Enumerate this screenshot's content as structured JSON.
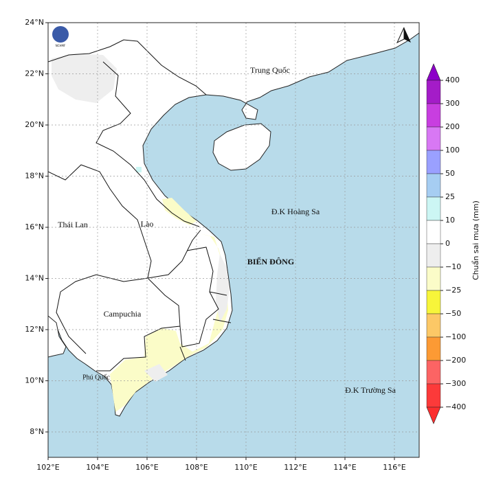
{
  "map": {
    "lat_labels": [
      "24°N",
      "22°N",
      "20°N",
      "18°N",
      "16°N",
      "14°N",
      "12°N",
      "10°N",
      "8°N"
    ],
    "lon_labels": [
      "102°E",
      "104°E",
      "106°E",
      "108°E",
      "110°E",
      "112°E",
      "114°E",
      "116°E"
    ],
    "places": [
      "Trung Quốc",
      "Thái Lan",
      "Lào",
      "Campuchia",
      "BIỂN ĐÔNG",
      "Đ.K Hoàng Sa",
      "Phú Quốc",
      "Đ.K Trường Sa"
    ],
    "logo": "NCHMF"
  },
  "colorbar": {
    "title": "Chuẩn sai mưa (mm)",
    "tick_labels": [
      "400",
      "300",
      "200",
      "100",
      "50",
      "25",
      "10",
      "0",
      "−10",
      "−25",
      "−50",
      "−100",
      "−200",
      "−300",
      "−400"
    ],
    "colors": [
      "#8c00c8",
      "#a41cc8",
      "#c83ee0",
      "#d878f4",
      "#9aa0ff",
      "#a6cdf2",
      "#ccf6f4",
      "#ffffff",
      "#eeeeee",
      "#fbfcc8",
      "#f7f53a",
      "#fcc866",
      "#fc9a34",
      "#fc6464",
      "#fc3a3a",
      "#fc2e2e"
    ]
  }
}
